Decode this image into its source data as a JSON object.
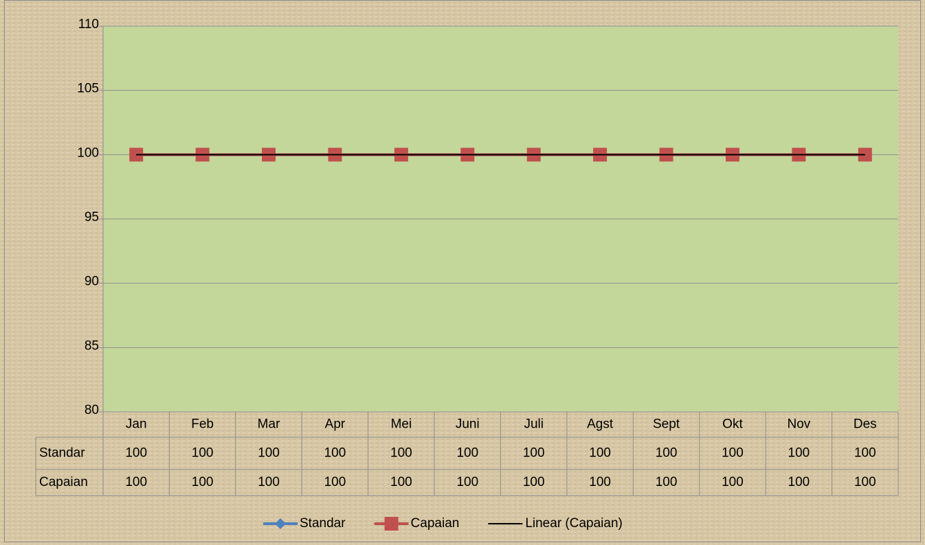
{
  "chart_data": {
    "type": "line",
    "categories": [
      "Jan",
      "Feb",
      "Mar",
      "Apr",
      "Mei",
      "Juni",
      "Juli",
      "Agst",
      "Sept",
      "Okt",
      "Nov",
      "Des"
    ],
    "series": [
      {
        "name": "Standar",
        "color": "#4f81bd",
        "marker": "diamond",
        "values": [
          100,
          100,
          100,
          100,
          100,
          100,
          100,
          100,
          100,
          100,
          100,
          100
        ]
      },
      {
        "name": "Capaian",
        "color": "#c0504d",
        "marker": "square",
        "values": [
          100,
          100,
          100,
          100,
          100,
          100,
          100,
          100,
          100,
          100,
          100,
          100
        ]
      }
    ],
    "trendline": {
      "name": "Linear (Capaian)",
      "of": 1,
      "color": "#000000"
    },
    "ylim": [
      80,
      110
    ],
    "yticks": [
      80,
      85,
      90,
      95,
      100,
      105,
      110
    ],
    "grid": true,
    "plot_color": "#c4d79b",
    "legend": "bottom",
    "data_table": true
  }
}
